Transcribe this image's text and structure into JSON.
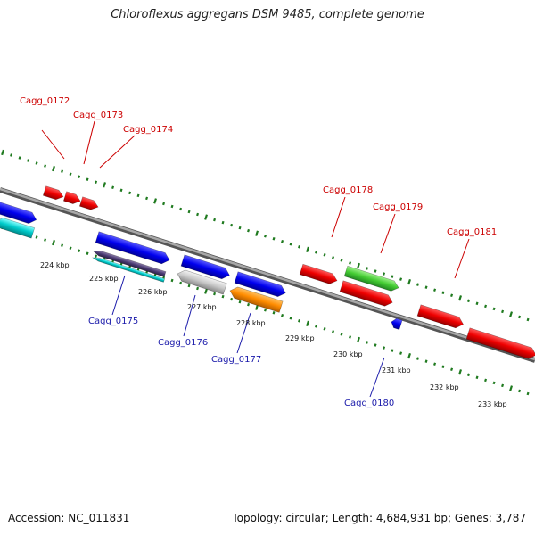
{
  "title": "Chloroflexus aggregans DSM 9485, complete genome",
  "footer": {
    "accession": "Accession: NC_011831",
    "topology": "Topology: circular; Length: 4,684,931 bp; Genes: 3,787"
  },
  "colors": {
    "dots": "#1f7a1f",
    "backbone": "#808080",
    "label_upper": "#cc0000",
    "label_lower": "#1a1aaa"
  },
  "kbp_ticks": [
    "224 kbp",
    "225 kbp",
    "226 kbp",
    "227 kbp",
    "228 kbp",
    "229 kbp",
    "230 kbp",
    "231 kbp",
    "232 kbp",
    "233 kbp"
  ],
  "gene_labels_upper": [
    "Cagg_0172",
    "Cagg_0173",
    "Cagg_0174",
    "Cagg_0178",
    "Cagg_0179",
    "Cagg_0181"
  ],
  "gene_labels_lower": [
    "Cagg_0175",
    "Cagg_0176",
    "Cagg_0177",
    "Cagg_0180"
  ]
}
